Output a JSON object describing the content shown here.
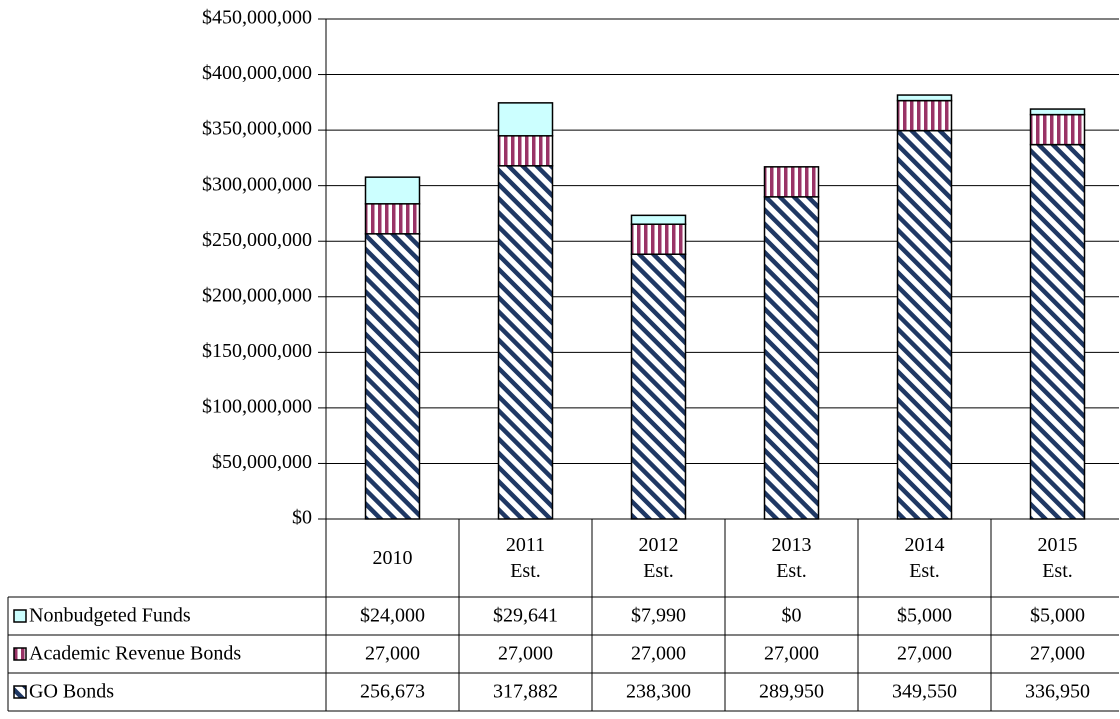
{
  "chart_data": {
    "type": "stacked-bar",
    "categories": [
      "2010",
      "2011\nEst.",
      "2012\nEst.",
      "2013\nEst.",
      "2014\nEst.",
      "2015\nEst."
    ],
    "series": [
      {
        "name": "GO Bonds",
        "color": "#1f3864",
        "pattern": "diagonal",
        "values": [
          256673000,
          317882000,
          238300000,
          289950000,
          349550000,
          336950000
        ],
        "value_labels": [
          "256,673",
          "317,882",
          "238,300",
          "289,950",
          "349,550",
          "336,950"
        ]
      },
      {
        "name": "Academic Revenue Bonds",
        "color": "#993366",
        "pattern": "vertical",
        "values": [
          27000000,
          27000000,
          27000000,
          27000000,
          27000000,
          27000000
        ],
        "value_labels": [
          "27,000",
          "27,000",
          "27,000",
          "27,000",
          "27,000",
          "27,000"
        ]
      },
      {
        "name": "Nonbudgeted Funds",
        "color": "#ccffff",
        "pattern": "solid",
        "values": [
          24000000,
          29641000,
          7990000,
          0,
          5000000,
          5000000
        ],
        "value_labels": [
          "$24,000",
          "$29,641",
          "$7,990",
          "$0",
          "$5,000",
          "$5,000"
        ]
      }
    ],
    "ylim": [
      0,
      450000000
    ],
    "yticks": [
      {
        "value": 0,
        "label": "$0"
      },
      {
        "value": 50000000,
        "label": "$50,000,000"
      },
      {
        "value": 100000000,
        "label": "$100,000,000"
      },
      {
        "value": 150000000,
        "label": "$150,000,000"
      },
      {
        "value": 200000000,
        "label": "$200,000,000"
      },
      {
        "value": 250000000,
        "label": "$250,000,000"
      },
      {
        "value": 300000000,
        "label": "$300,000,000"
      },
      {
        "value": 350000000,
        "label": "$350,000,000"
      },
      {
        "value": 400000000,
        "label": "$400,000,000"
      },
      {
        "value": 450000000,
        "label": "$450,000,000"
      }
    ],
    "grid": true
  }
}
